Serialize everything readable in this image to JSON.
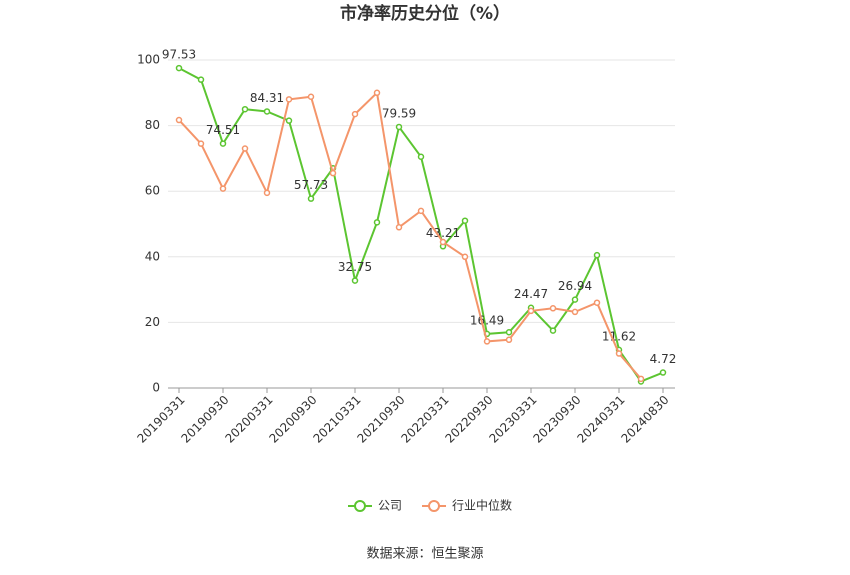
{
  "chart_data": {
    "type": "line",
    "title": "市净率历史分位（%）",
    "categories": [
      "20190331",
      null,
      "20190930",
      null,
      "20200331",
      null,
      "20200930",
      null,
      "20210331",
      null,
      "20210930",
      null,
      "20220331",
      null,
      "20220930",
      null,
      "20230331",
      null,
      "20230930",
      null,
      "20240331",
      null,
      "20240830"
    ],
    "series": [
      {
        "name": "公司",
        "color": "#5cc531",
        "values": [
          97.53,
          94,
          74.51,
          85,
          84.31,
          81.5,
          57.73,
          67,
          32.75,
          50.5,
          79.59,
          70.5,
          43.21,
          51,
          16.49,
          17,
          24.47,
          17.5,
          26.94,
          40.5,
          11.62,
          2,
          4.72
        ]
      },
      {
        "name": "行业中位数",
        "color": "#f4956a",
        "values": [
          81.7,
          74.5,
          60.8,
          73,
          59.5,
          88,
          88.8,
          65.5,
          83.5,
          90,
          49,
          54,
          44.5,
          40,
          14.2,
          14.7,
          23.5,
          24.3,
          23.2,
          26,
          10.5,
          2.8,
          null
        ]
      }
    ],
    "ylim": [
      0,
      100
    ],
    "yticks": [
      0,
      20,
      40,
      60,
      80,
      100
    ],
    "grid": true,
    "legend": "bottom",
    "source": "数据来源：恒生聚源"
  }
}
